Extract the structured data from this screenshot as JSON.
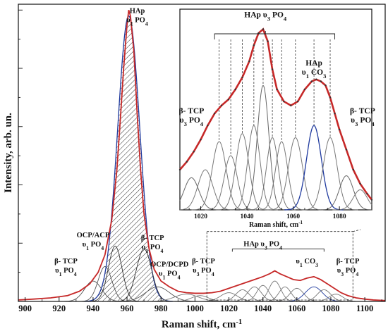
{
  "chart_data": [
    {
      "type": "line",
      "title": "",
      "xlabel": "Raman shift, cm",
      "xlabel_sup": "-1",
      "ylabel": "Intensity, arb. un.",
      "xlim": [
        896,
        1112
      ],
      "ylim": [
        0,
        1.02
      ],
      "xticks": [
        900,
        920,
        940,
        960,
        980,
        1000,
        1020,
        1040,
        1060,
        1080,
        1100
      ],
      "grid": false,
      "y_tick_labels_shown": false,
      "components": [
        {
          "center": 940,
          "amp": 0.07,
          "width": 5,
          "color": "#555555"
        },
        {
          "center": 947,
          "amp": 0.12,
          "width": 4,
          "color": "#555555"
        },
        {
          "center": 953,
          "amp": 0.19,
          "width": 4,
          "color": "#333333"
        },
        {
          "center": 961,
          "amp": 0.98,
          "width": 6.5,
          "color": "#1f3a9e",
          "hatched": true
        },
        {
          "center": 970,
          "amp": 0.18,
          "width": 4.5,
          "color": "#333333"
        },
        {
          "center": 978,
          "amp": 0.05,
          "width": 7,
          "color": "#555555"
        },
        {
          "center": 995,
          "amp": 0.025,
          "width": 7,
          "color": "#777777"
        },
        {
          "center": 1003,
          "amp": 0.02,
          "width": 5,
          "color": "#777777"
        },
        {
          "center": 1020,
          "amp": 0.03,
          "width": 5,
          "color": "#777777"
        },
        {
          "center": 1028,
          "amp": 0.04,
          "width": 4,
          "color": "#777777"
        },
        {
          "center": 1035,
          "amp": 0.05,
          "width": 4,
          "color": "#777777"
        },
        {
          "center": 1040,
          "amp": 0.055,
          "width": 3.5,
          "color": "#777777"
        },
        {
          "center": 1047,
          "amp": 0.07,
          "width": 3.5,
          "color": "#777777"
        },
        {
          "center": 1053,
          "amp": 0.05,
          "width": 3.5,
          "color": "#777777"
        },
        {
          "center": 1060,
          "amp": 0.045,
          "width": 4,
          "color": "#777777"
        },
        {
          "center": 1070,
          "amp": 0.05,
          "width": 5,
          "color": "#1f3a9e"
        },
        {
          "center": 1076,
          "amp": 0.04,
          "width": 4,
          "color": "#777777"
        },
        {
          "center": 1083,
          "amp": 0.025,
          "width": 4,
          "color": "#777777"
        }
      ],
      "envelope": {
        "name": "",
        "color": "#c62828",
        "x": [
          896,
          905,
          915,
          925,
          932,
          938,
          943,
          947,
          951,
          954,
          956,
          958,
          960,
          961,
          962,
          964,
          966,
          968,
          970,
          973,
          976,
          980,
          985,
          990,
          995,
          1000,
          1005,
          1010,
          1015,
          1020,
          1025,
          1030,
          1035,
          1040,
          1044,
          1047,
          1050,
          1054,
          1058,
          1062,
          1066,
          1070,
          1074,
          1078,
          1082,
          1086,
          1090,
          1095,
          1100,
          1105,
          1112
        ],
        "y": [
          0.005,
          0.008,
          0.012,
          0.02,
          0.035,
          0.06,
          0.1,
          0.16,
          0.28,
          0.45,
          0.62,
          0.8,
          0.95,
          1.0,
          0.98,
          0.86,
          0.64,
          0.45,
          0.3,
          0.18,
          0.11,
          0.07,
          0.05,
          0.035,
          0.03,
          0.028,
          0.028,
          0.03,
          0.035,
          0.045,
          0.055,
          0.065,
          0.075,
          0.085,
          0.095,
          0.105,
          0.095,
          0.085,
          0.075,
          0.072,
          0.08,
          0.085,
          0.075,
          0.06,
          0.045,
          0.03,
          0.02,
          0.012,
          0.008,
          0.005,
          0.003
        ]
      },
      "annotations": [
        {
          "lines": [
            "HAp",
            "υ1 PO4"
          ],
          "x": 966,
          "y": 0.99
        },
        {
          "lines": [
            "OCP/ACP",
            "υ1 PO4"
          ],
          "x": 940,
          "y": 0.22
        },
        {
          "lines": [
            "β- TCP",
            "υ1 PO4"
          ],
          "x": 924,
          "y": 0.13
        },
        {
          "lines": [
            "β- TCP",
            "υ1 PO4"
          ],
          "x": 975,
          "y": 0.21
        },
        {
          "lines": [
            "OCP/DCPD",
            "υ1 PO4"
          ],
          "x": 985,
          "y": 0.12
        },
        {
          "lines": [
            "β- TCP",
            "υ3 PO4"
          ],
          "x": 1005,
          "y": 0.13
        },
        {
          "lines": [
            "HAp υ3 PO4"
          ],
          "x": 1040,
          "y": 0.19
        },
        {
          "lines": [
            "υ1 CO3"
          ],
          "x": 1066,
          "y": 0.13
        },
        {
          "lines": [
            "β- TCP",
            "υ3 PO4"
          ],
          "x": 1090,
          "y": 0.13
        }
      ]
    },
    {
      "type": "line",
      "title": "",
      "xlabel": "Raman shift, cm",
      "xlabel_sup": "-1",
      "ylabel": "",
      "xlim": [
        1011,
        1094
      ],
      "ylim": [
        0,
        1
      ],
      "xticks": [
        1020,
        1040,
        1060,
        1080
      ],
      "grid": false,
      "components": [
        {
          "center": 1016,
          "amp": 0.16,
          "width": 3.2,
          "color": "#666666"
        },
        {
          "center": 1022,
          "amp": 0.2,
          "width": 3.2,
          "color": "#777777"
        },
        {
          "center": 1028,
          "amp": 0.34,
          "width": 3.0,
          "color": "#777777"
        },
        {
          "center": 1033,
          "amp": 0.27,
          "width": 2.8,
          "color": "#777777"
        },
        {
          "center": 1038,
          "amp": 0.38,
          "width": 2.8,
          "color": "#777777"
        },
        {
          "center": 1043,
          "amp": 0.42,
          "width": 2.6,
          "color": "#777777"
        },
        {
          "center": 1047,
          "amp": 0.62,
          "width": 2.5,
          "color": "#666666"
        },
        {
          "center": 1051,
          "amp": 0.36,
          "width": 2.5,
          "color": "#777777"
        },
        {
          "center": 1055,
          "amp": 0.34,
          "width": 2.6,
          "color": "#777777"
        },
        {
          "center": 1061,
          "amp": 0.36,
          "width": 3.0,
          "color": "#777777"
        },
        {
          "center": 1069,
          "amp": 0.42,
          "width": 3.2,
          "color": "#1f3a9e"
        },
        {
          "center": 1076,
          "amp": 0.36,
          "width": 3.0,
          "color": "#777777"
        },
        {
          "center": 1083,
          "amp": 0.17,
          "width": 3.0,
          "color": "#666666"
        },
        {
          "center": 1089,
          "amp": 0.1,
          "width": 3.0,
          "color": "#777777"
        }
      ],
      "envelope": {
        "name": "",
        "color": "#c62828",
        "x": [
          1011,
          1014,
          1017,
          1020,
          1023,
          1026,
          1029,
          1032,
          1035,
          1038,
          1041,
          1043,
          1045,
          1047,
          1049,
          1051,
          1053,
          1056,
          1059,
          1062,
          1065,
          1068,
          1070,
          1072,
          1074,
          1076,
          1078,
          1080,
          1083,
          1086,
          1089,
          1092,
          1094
        ],
        "y": [
          0.2,
          0.24,
          0.29,
          0.35,
          0.42,
          0.48,
          0.52,
          0.55,
          0.6,
          0.66,
          0.74,
          0.82,
          0.88,
          0.9,
          0.84,
          0.7,
          0.6,
          0.54,
          0.52,
          0.54,
          0.6,
          0.64,
          0.65,
          0.64,
          0.62,
          0.56,
          0.48,
          0.4,
          0.3,
          0.2,
          0.13,
          0.08,
          0.05
        ]
      },
      "annotations": [
        {
          "lines": [
            "HAp υ3 PO4"
          ],
          "x": 1048,
          "y": 0.96
        },
        {
          "lines": [
            "HAp",
            "υ1 CO3"
          ],
          "x": 1069,
          "y": 0.72
        },
        {
          "lines": [
            "β- TCP",
            "υ3 PO4"
          ],
          "x": 1016,
          "y": 0.48
        },
        {
          "lines": [
            "β- TCP",
            "υ3 PO4"
          ],
          "x": 1090,
          "y": 0.48
        }
      ]
    }
  ]
}
